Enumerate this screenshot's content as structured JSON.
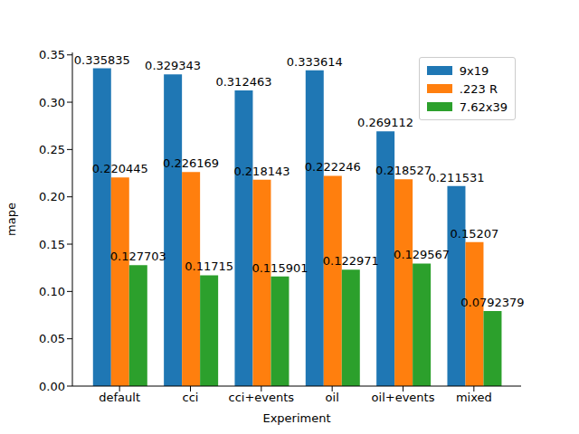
{
  "chart_data": {
    "type": "bar",
    "x_label": "Experiment",
    "y_label": "mape",
    "categories": [
      "default",
      "cci",
      "cci+events",
      "oil",
      "oil+events",
      "mixed"
    ],
    "series": [
      {
        "name": "9x19",
        "color": "#1f77b4",
        "values": [
          0.335835,
          0.329343,
          0.312463,
          0.333614,
          0.269112,
          0.211531
        ]
      },
      {
        "name": ".223 R",
        "color": "#ff7f0e",
        "values": [
          0.220445,
          0.226169,
          0.218143,
          0.222246,
          0.218527,
          0.15207
        ]
      },
      {
        "name": "7.62x39",
        "color": "#2ca02c",
        "values": [
          0.127703,
          0.11715,
          0.115901,
          0.122971,
          0.129567,
          0.0792379
        ]
      }
    ],
    "ylim": [
      0,
      0.3526
    ],
    "yticks": [
      {
        "value": 0,
        "label": "0.00"
      },
      0.05,
      {
        "value": 0.1,
        "label": "0.10"
      },
      0.15,
      {
        "value": 0.2,
        "label": "0.20"
      },
      0.25,
      {
        "value": 0.3,
        "label": "0.30"
      },
      0.35
    ],
    "grid": false,
    "legend": "upper right",
    "data_labels": true
  }
}
